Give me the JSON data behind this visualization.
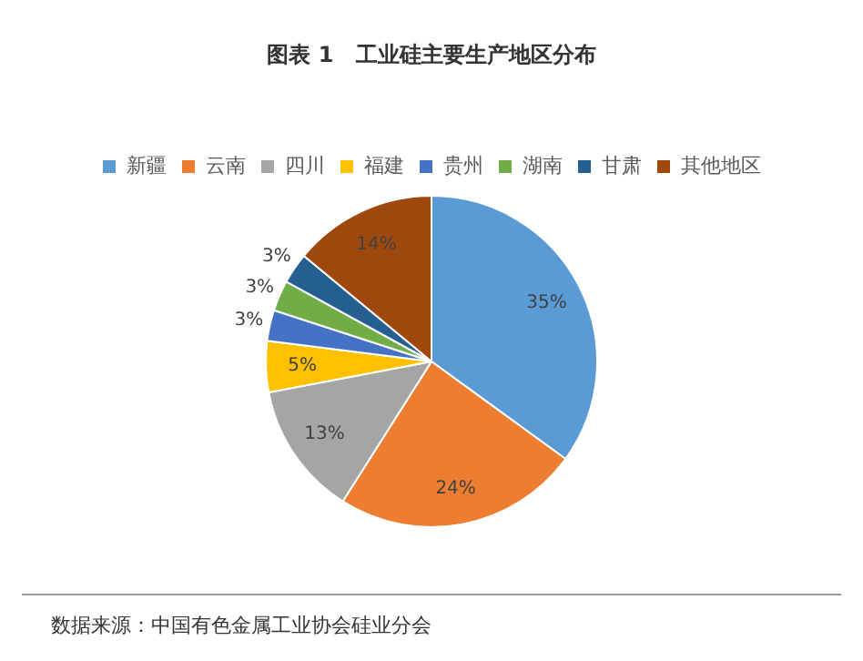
{
  "chart_data": {
    "type": "pie",
    "title": "图表 1　工业硅主要生产地区分布",
    "categories": [
      "新疆",
      "云南",
      "四川",
      "福建",
      "贵州",
      "湖南",
      "甘肃",
      "其他地区"
    ],
    "values": [
      35,
      24,
      13,
      5,
      3,
      3,
      3,
      14
    ],
    "colors": [
      "#5b9bd5",
      "#ed7d31",
      "#a5a5a5",
      "#ffc000",
      "#4472c4",
      "#70ad47",
      "#255e91",
      "#9e480e"
    ],
    "value_labels": [
      "35%",
      "24%",
      "13%",
      "5%",
      "3%",
      "3%",
      "3%",
      "14%"
    ],
    "legend": "top",
    "annotations": [
      "数据来源：中国有色金属工业协会硅业分会"
    ]
  }
}
